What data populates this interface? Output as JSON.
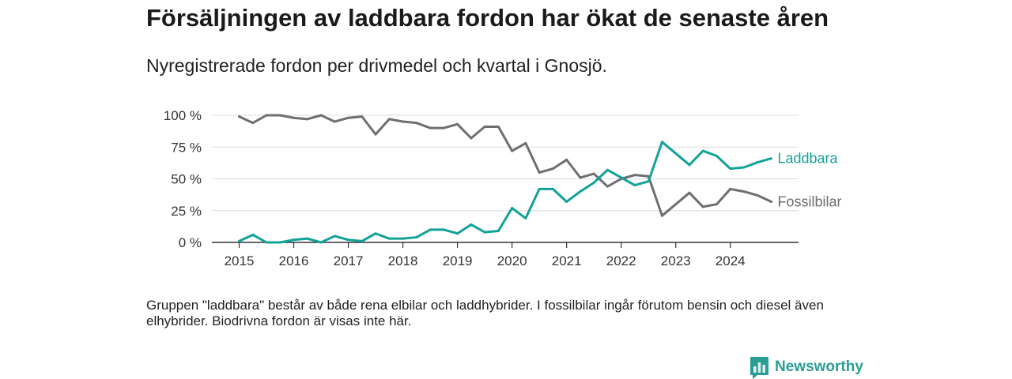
{
  "colors": {
    "axis": "#333333",
    "axis_text": "#333333",
    "grid": "#dcdcdc"
  },
  "brand": {
    "name": "Newsworthy",
    "icon": "newsworthy-logo-icon",
    "color": "#2a9d94"
  },
  "footnote": "Gruppen \"laddbara\" består av både rena elbilar och laddhybrider. I fossilbilar ingår förutom bensin och diesel även elhybrider. Biodrivna fordon är visas inte här.",
  "chart_data": {
    "type": "line",
    "title": "Försäljningen av laddbara fordon har ökat de senaste åren",
    "subtitle": "Nyregistrerade fordon per drivmedel och kvartal i Gnosjö.",
    "xlabel": "",
    "ylabel": "",
    "grid": true,
    "xlim": [
      2014.5,
      2025.25
    ],
    "ylim": [
      0,
      100
    ],
    "x_ticks": [
      "2015",
      "2016",
      "2017",
      "2018",
      "2019",
      "2020",
      "2021",
      "2022",
      "2023",
      "2024"
    ],
    "y_ticks": [
      0,
      25,
      50,
      75,
      100
    ],
    "y_tick_labels": [
      "0 %",
      "25 %",
      "50 %",
      "75 %",
      "100 %"
    ],
    "x": [
      2015,
      2015.25,
      2015.5,
      2015.75,
      2016,
      2016.25,
      2016.5,
      2016.75,
      2017,
      2017.25,
      2017.5,
      2017.75,
      2018,
      2018.25,
      2018.5,
      2018.75,
      2019,
      2019.25,
      2019.5,
      2019.75,
      2020,
      2020.25,
      2020.5,
      2020.75,
      2021,
      2021.25,
      2021.5,
      2021.75,
      2022,
      2022.25,
      2022.5,
      2022.75,
      2023,
      2023.25,
      2023.5,
      2023.75,
      2024,
      2024.25,
      2024.5,
      2024.75
    ],
    "series": [
      {
        "name": "Laddbara",
        "color": "#12a298",
        "values": [
          1,
          6,
          0,
          0,
          2,
          3,
          0,
          5,
          2,
          1,
          7,
          3,
          3,
          4,
          10,
          10,
          7,
          14,
          8,
          9,
          27,
          19,
          42,
          42,
          32,
          40,
          47,
          57,
          51,
          45,
          48,
          79,
          70,
          61,
          72,
          68,
          58,
          59,
          63,
          66
        ]
      },
      {
        "name": "Fossilbilar",
        "color": "#6e6e73",
        "values": [
          99,
          94,
          100,
          100,
          98,
          97,
          100,
          95,
          98,
          99,
          85,
          97,
          95,
          94,
          90,
          90,
          93,
          82,
          91,
          91,
          72,
          78,
          55,
          58,
          65,
          51,
          54,
          44,
          50,
          53,
          52,
          21,
          30,
          39,
          28,
          30,
          42,
          40,
          37,
          32
        ]
      }
    ]
  }
}
